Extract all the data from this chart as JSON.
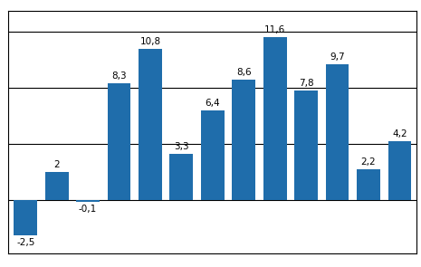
{
  "values": [
    -2.5,
    2.0,
    -0.1,
    8.3,
    10.8,
    3.3,
    6.4,
    8.6,
    11.6,
    7.8,
    9.7,
    2.2,
    4.2
  ],
  "labels": [
    "-2,5",
    "2",
    "-0,1",
    "8,3",
    "10,8",
    "3,3",
    "6,4",
    "8,6",
    "11,6",
    "7,8",
    "9,7",
    "2,2",
    "4,2"
  ],
  "bar_color": "#1F6DAB",
  "ylim": [
    -3.8,
    13.5
  ],
  "hlines": [
    4.0,
    8.0,
    12.0
  ],
  "label_fontsize": 7.5,
  "background_color": "#ffffff",
  "bar_width": 0.75
}
